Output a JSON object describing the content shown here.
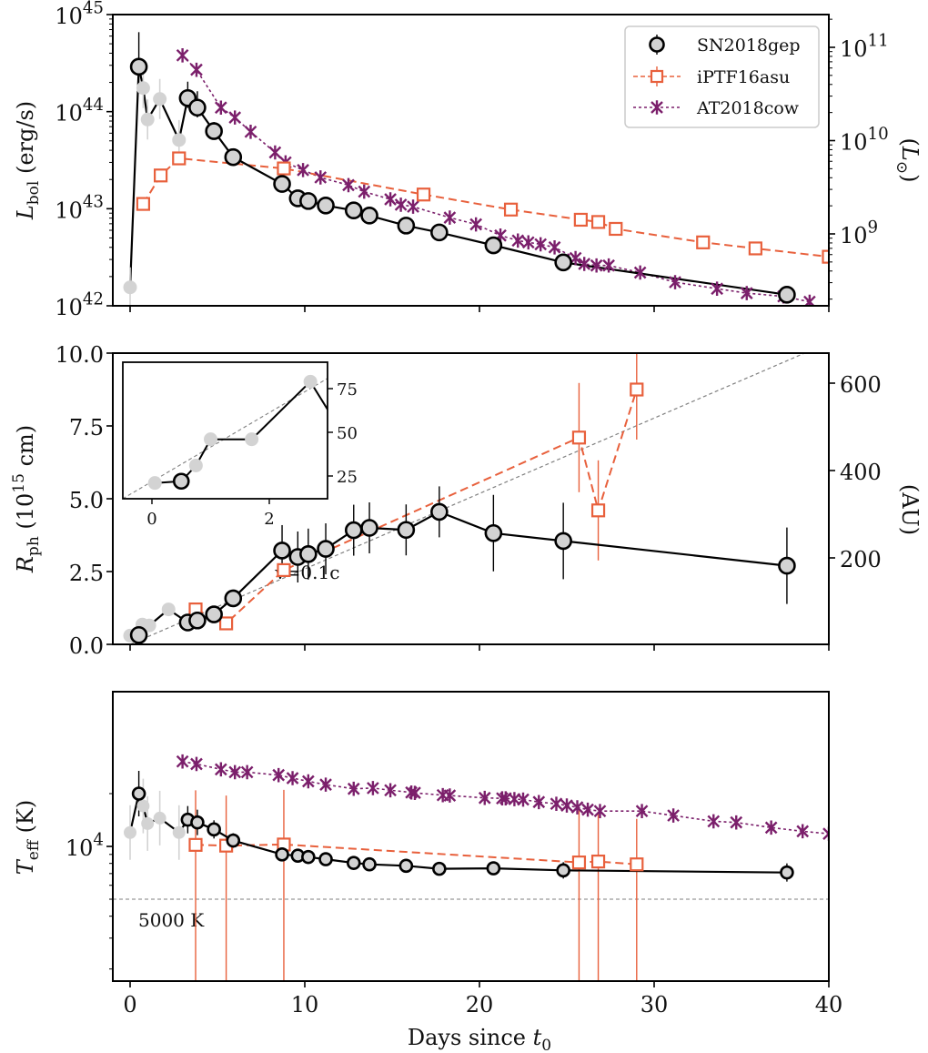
{
  "chart_data": [
    {
      "type": "line",
      "panel": "top",
      "ylabel": "L_bol (erg/s)",
      "ylabel_right": "(L_sun)",
      "yscale": "log",
      "ylim": [
        1e+42,
        1e+45
      ],
      "ylim_right_note": "Lsun equivalent",
      "y_ticks": [
        "10^42",
        "10^43",
        "10^44",
        "10^45"
      ],
      "y_ticks_right": [
        "10^9",
        "10^10",
        "10^11"
      ],
      "xlim": [
        -1,
        40
      ],
      "grid": false,
      "legend": {
        "placement": "top-right",
        "entries": [
          "SN2018gep",
          "iPTF16asu",
          "AT2018cow"
        ]
      },
      "series": [
        {
          "name": "SN2018gep",
          "style": "circle-black-solid",
          "gray_points": [
            {
              "x": 0.0,
              "y": 1.55e+42
            },
            {
              "x": 0.75,
              "y": 1.75e+44
            },
            {
              "x": 1.0,
              "y": 8.3e+43
            },
            {
              "x": 1.7,
              "y": 1.35e+44
            },
            {
              "x": 2.8,
              "y": 5.1e+43
            }
          ],
          "points": [
            {
              "x": 0.5,
              "y": 2.9e+44
            },
            {
              "x": 3.3,
              "y": 1.38e+44
            },
            {
              "x": 3.85,
              "y": 1.1e+44
            },
            {
              "x": 4.8,
              "y": 6.3e+43
            },
            {
              "x": 5.9,
              "y": 3.4e+43
            },
            {
              "x": 8.7,
              "y": 1.8e+43
            },
            {
              "x": 9.6,
              "y": 1.28e+43
            },
            {
              "x": 10.2,
              "y": 1.2e+43
            },
            {
              "x": 11.2,
              "y": 1.08e+43
            },
            {
              "x": 12.8,
              "y": 9.6e+42
            },
            {
              "x": 13.7,
              "y": 8.5e+42
            },
            {
              "x": 15.8,
              "y": 6.7e+42
            },
            {
              "x": 17.7,
              "y": 5.7e+42
            },
            {
              "x": 20.8,
              "y": 4.2e+42
            },
            {
              "x": 24.8,
              "y": 2.8e+42
            },
            {
              "x": 37.6,
              "y": 1.3e+42
            }
          ]
        },
        {
          "name": "iPTF16asu",
          "style": "square-orange-dashed",
          "points": [
            {
              "x": 0.75,
              "y": 1.12e+43
            },
            {
              "x": 1.75,
              "y": 2.2e+43
            },
            {
              "x": 2.8,
              "y": 3.3e+43
            },
            {
              "x": 8.8,
              "y": 2.6e+43
            },
            {
              "x": 16.8,
              "y": 1.4e+43
            },
            {
              "x": 21.8,
              "y": 9.8e+42
            },
            {
              "x": 25.8,
              "y": 7.7e+42
            },
            {
              "x": 26.8,
              "y": 7.3e+42
            },
            {
              "x": 27.8,
              "y": 6.2e+42
            },
            {
              "x": 32.8,
              "y": 4.5e+42
            },
            {
              "x": 35.8,
              "y": 3.9e+42
            },
            {
              "x": 40.0,
              "y": 3.2e+42
            }
          ]
        },
        {
          "name": "AT2018cow",
          "style": "x-purple-dotted",
          "points": [
            {
              "x": 3.0,
              "y": 3.8e+44
            },
            {
              "x": 3.8,
              "y": 2.7e+44
            },
            {
              "x": 5.2,
              "y": 1.1e+44
            },
            {
              "x": 6.0,
              "y": 8.7e+43
            },
            {
              "x": 6.9,
              "y": 6.2e+43
            },
            {
              "x": 8.3,
              "y": 3.8e+43
            },
            {
              "x": 8.9,
              "y": 3e+43
            },
            {
              "x": 9.9,
              "y": 2.5e+43
            },
            {
              "x": 10.9,
              "y": 2.1e+43
            },
            {
              "x": 12.5,
              "y": 1.75e+43
            },
            {
              "x": 13.4,
              "y": 1.5e+43
            },
            {
              "x": 14.9,
              "y": 1.25e+43
            },
            {
              "x": 15.5,
              "y": 1.1e+43
            },
            {
              "x": 16.2,
              "y": 1.05e+43
            },
            {
              "x": 18.3,
              "y": 8.1e+42
            },
            {
              "x": 19.8,
              "y": 6.9e+42
            },
            {
              "x": 21.2,
              "y": 5.3e+42
            },
            {
              "x": 22.2,
              "y": 4.7e+42
            },
            {
              "x": 22.8,
              "y": 4.5e+42
            },
            {
              "x": 23.5,
              "y": 4.3e+42
            },
            {
              "x": 24.3,
              "y": 4e+42
            },
            {
              "x": 25.5,
              "y": 3.1e+42
            },
            {
              "x": 26.0,
              "y": 2.7e+42
            },
            {
              "x": 26.7,
              "y": 2.6e+42
            },
            {
              "x": 27.4,
              "y": 2.6e+42
            },
            {
              "x": 29.2,
              "y": 2.2e+42
            },
            {
              "x": 31.2,
              "y": 1.75e+42
            },
            {
              "x": 33.6,
              "y": 1.5e+42
            },
            {
              "x": 35.3,
              "y": 1.35e+42
            },
            {
              "x": 37.4,
              "y": 1.25e+42
            },
            {
              "x": 38.9,
              "y": 1.1e+42
            }
          ]
        }
      ]
    },
    {
      "type": "line",
      "panel": "middle",
      "ylabel": "R_ph (10^15 cm)",
      "ylabel_right": "(AU)",
      "yscale": "linear",
      "ylim": [
        0,
        10
      ],
      "y_ticks": [
        "0.0",
        "2.5",
        "5.0",
        "7.5",
        "10.0"
      ],
      "y_ticks_right": [
        "200",
        "400",
        "600"
      ],
      "xlim": [
        -1,
        40
      ],
      "annotation": "v=0.1c",
      "reference_line": {
        "label": "v=0.1c",
        "slope_per_day": 0.259,
        "intercept": 0.0
      },
      "series": [
        {
          "name": "SN2018gep",
          "gray_points": [
            {
              "x": 0.0,
              "y": 0.3
            },
            {
              "x": 0.7,
              "y": 0.68
            },
            {
              "x": 1.1,
              "y": 0.65
            },
            {
              "x": 2.2,
              "y": 1.2
            }
          ],
          "points": [
            {
              "x": 0.5,
              "y": 0.32
            },
            {
              "x": 3.3,
              "y": 0.75
            },
            {
              "x": 3.85,
              "y": 0.82
            },
            {
              "x": 4.8,
              "y": 1.03
            },
            {
              "x": 5.9,
              "y": 1.58
            },
            {
              "x": 8.7,
              "y": 3.22
            },
            {
              "x": 9.6,
              "y": 3.0
            },
            {
              "x": 10.2,
              "y": 3.1
            },
            {
              "x": 11.2,
              "y": 3.28
            },
            {
              "x": 12.8,
              "y": 3.92
            },
            {
              "x": 13.7,
              "y": 4.0
            },
            {
              "x": 15.8,
              "y": 3.93
            },
            {
              "x": 17.7,
              "y": 4.55
            },
            {
              "x": 20.8,
              "y": 3.82
            },
            {
              "x": 24.8,
              "y": 3.55
            },
            {
              "x": 37.6,
              "y": 2.7
            }
          ]
        },
        {
          "name": "iPTF16asu",
          "points": [
            {
              "x": 3.75,
              "y": 1.2
            },
            {
              "x": 5.5,
              "y": 0.72
            },
            {
              "x": 8.8,
              "y": 2.55
            },
            {
              "x": 25.7,
              "y": 7.1
            },
            {
              "x": 26.8,
              "y": 4.6
            },
            {
              "x": 29.0,
              "y": 8.75
            }
          ]
        }
      ],
      "inset": {
        "xlim": [
          -0.5,
          3.0
        ],
        "ylim": [
          12,
          88
        ],
        "x_ticks": [
          "0",
          "2"
        ],
        "y_ticks_right": [
          "25",
          "50",
          "75"
        ],
        "points_gray": [
          {
            "x": 0.05,
            "y": 21
          },
          {
            "x": 0.75,
            "y": 31
          },
          {
            "x": 1.0,
            "y": 46
          },
          {
            "x": 1.7,
            "y": 46
          },
          {
            "x": 2.7,
            "y": 79
          }
        ],
        "points": [
          {
            "x": 0.5,
            "y": 22
          }
        ]
      }
    },
    {
      "type": "line",
      "panel": "bottom",
      "ylabel": "T_eff (K)",
      "yscale": "log",
      "ylim": [
        1700,
        7600
      ],
      "y_ticks": [
        "10^4"
      ],
      "xlim": [
        -1,
        40
      ],
      "xlabel": "Days since t_0",
      "x_ticks": [
        "0",
        "10",
        "20",
        "30",
        "40"
      ],
      "annotation": "5000 K",
      "reference_hline": 5000,
      "series": [
        {
          "name": "SN2018gep",
          "gray_points": [
            {
              "x": 0.0,
              "y": 12000
            },
            {
              "x": 0.75,
              "y": 17000
            },
            {
              "x": 1.0,
              "y": 13500
            },
            {
              "x": 1.7,
              "y": 14500
            },
            {
              "x": 2.8,
              "y": 12000
            }
          ],
          "points": [
            {
              "x": 0.5,
              "y": 20000
            },
            {
              "x": 3.3,
              "y": 14200
            },
            {
              "x": 3.85,
              "y": 13700
            },
            {
              "x": 4.8,
              "y": 12500
            },
            {
              "x": 5.9,
              "y": 10800
            },
            {
              "x": 8.7,
              "y": 9000
            },
            {
              "x": 9.6,
              "y": 8850
            },
            {
              "x": 10.2,
              "y": 8700
            },
            {
              "x": 11.2,
              "y": 8450
            },
            {
              "x": 12.8,
              "y": 8050
            },
            {
              "x": 13.7,
              "y": 7900
            },
            {
              "x": 15.8,
              "y": 7750
            },
            {
              "x": 17.7,
              "y": 7450
            },
            {
              "x": 20.8,
              "y": 7500
            },
            {
              "x": 24.8,
              "y": 7300
            },
            {
              "x": 37.6,
              "y": 7100
            }
          ]
        },
        {
          "name": "iPTF16asu",
          "points": [
            {
              "x": 3.75,
              "y": 10200
            },
            {
              "x": 5.5,
              "y": 10100
            },
            {
              "x": 8.8,
              "y": 10250
            },
            {
              "x": 25.7,
              "y": 8100
            },
            {
              "x": 26.8,
              "y": 8200
            },
            {
              "x": 29.0,
              "y": 7900
            }
          ]
        },
        {
          "name": "AT2018cow",
          "points": [
            {
              "x": 3.0,
              "y": 30500
            },
            {
              "x": 3.8,
              "y": 29500
            },
            {
              "x": 5.2,
              "y": 27500
            },
            {
              "x": 6.0,
              "y": 26500
            },
            {
              "x": 6.7,
              "y": 26500
            },
            {
              "x": 8.5,
              "y": 25500
            },
            {
              "x": 9.3,
              "y": 24500
            },
            {
              "x": 10.2,
              "y": 23500
            },
            {
              "x": 11.2,
              "y": 22500
            },
            {
              "x": 12.8,
              "y": 21300
            },
            {
              "x": 13.9,
              "y": 21500
            },
            {
              "x": 14.9,
              "y": 20900
            },
            {
              "x": 16.1,
              "y": 20300
            },
            {
              "x": 16.3,
              "y": 20200
            },
            {
              "x": 17.9,
              "y": 19600
            },
            {
              "x": 18.3,
              "y": 19500
            },
            {
              "x": 20.3,
              "y": 18900
            },
            {
              "x": 21.3,
              "y": 18800
            },
            {
              "x": 21.5,
              "y": 18800
            },
            {
              "x": 22.0,
              "y": 18600
            },
            {
              "x": 22.5,
              "y": 18500
            },
            {
              "x": 23.4,
              "y": 17900
            },
            {
              "x": 24.4,
              "y": 17500
            },
            {
              "x": 25.0,
              "y": 17100
            },
            {
              "x": 25.6,
              "y": 16700
            },
            {
              "x": 26.2,
              "y": 16200
            },
            {
              "x": 26.9,
              "y": 15900
            },
            {
              "x": 29.3,
              "y": 15900
            },
            {
              "x": 31.1,
              "y": 15000
            },
            {
              "x": 33.4,
              "y": 13900
            },
            {
              "x": 34.7,
              "y": 13700
            },
            {
              "x": 36.7,
              "y": 12800
            },
            {
              "x": 38.5,
              "y": 12200
            },
            {
              "x": 40.0,
              "y": 11800
            }
          ]
        }
      ]
    }
  ],
  "colors": {
    "sn2018gep": "#000000",
    "sn2018gep_fill": "#d3d3d3",
    "gray_early": "#d3d3d3",
    "iptf16asu": "#e8603c",
    "at2018cow": "#7b1f6b",
    "reference": "#808080"
  }
}
